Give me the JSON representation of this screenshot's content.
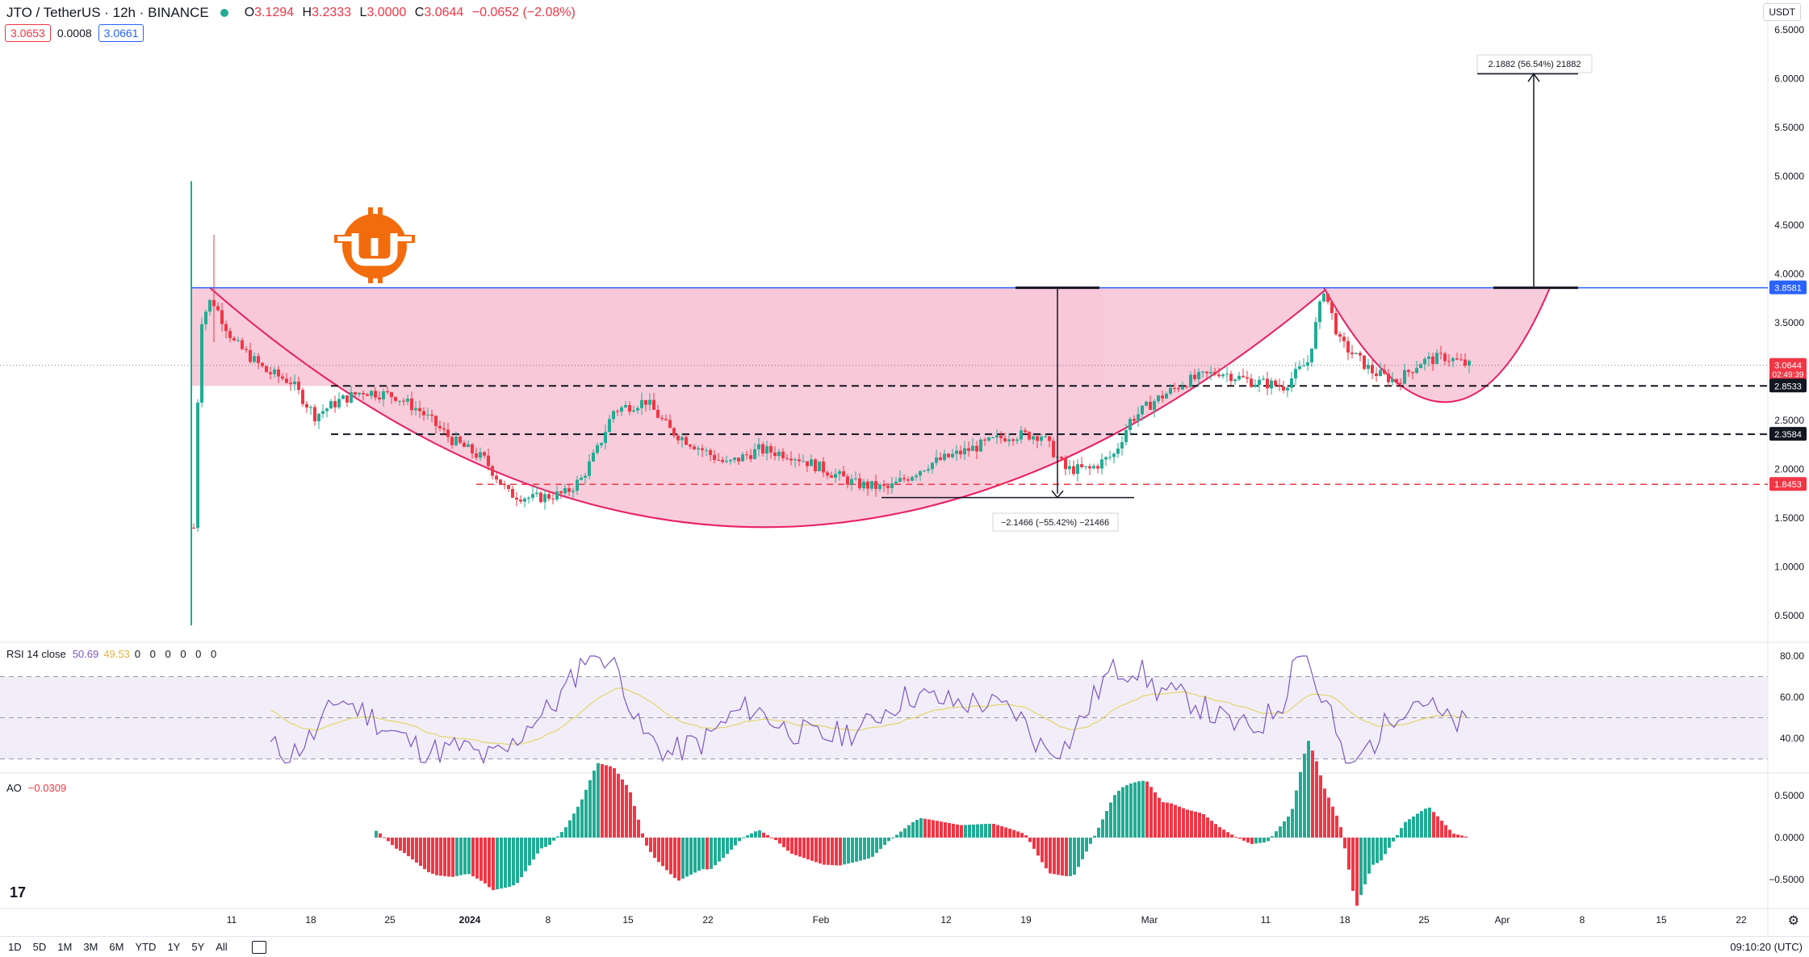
{
  "header": {
    "symbol": "JTO / TetherUS · 12h · BINANCE",
    "ohlc": [
      {
        "k": "O",
        "v": "3.1294"
      },
      {
        "k": "H",
        "v": "3.2333"
      },
      {
        "k": "L",
        "v": "3.0000"
      },
      {
        "k": "C",
        "v": "3.0644"
      },
      {
        "k": "",
        "v": "−0.0652 (−2.08%)"
      }
    ],
    "bid": "3.0653",
    "spread": "0.0008",
    "ask": "3.0661",
    "currency_button": "USDT"
  },
  "price_axis": {
    "ticks": [
      "6.5000",
      "6.0000",
      "5.5000",
      "5.0000",
      "4.5000",
      "4.0000",
      "3.5000",
      "3.0000",
      "2.5000",
      "2.0000",
      "1.5000",
      "1.0000",
      "0.5000"
    ],
    "badges": [
      {
        "label": "3.8581",
        "value": 3.8581,
        "color": "#2962ff"
      },
      {
        "label": "3.0644",
        "value": 3.0644,
        "color": "#f23645",
        "sub": "02:49:39"
      },
      {
        "label": "2.8533",
        "value": 2.8533,
        "color": "#131722"
      },
      {
        "label": "2.3584",
        "value": 2.3584,
        "color": "#131722"
      },
      {
        "label": "1.8453",
        "value": 1.8453,
        "color": "#f23645"
      }
    ]
  },
  "annotations": {
    "drop_label": "−2.1466 (−55.42%) −21466",
    "target_label": "2.1882 (56.54%) 21882"
  },
  "rsi": {
    "label": "RSI 14 close",
    "value1": "50.69",
    "value2": "49.53",
    "extra": "0 0 0 0 0 0",
    "ticks": [
      "80.00",
      "60.00",
      "40.00"
    ]
  },
  "ao": {
    "label": "AO",
    "value": "−0.0309",
    "ticks": [
      "0.5000",
      "0.0000",
      "−0.5000"
    ]
  },
  "time_axis": [
    "11",
    "18",
    "25",
    "2024",
    "8",
    "15",
    "22",
    "Feb",
    "12",
    "19",
    "Mar",
    "11",
    "18",
    "25",
    "Apr",
    "8",
    "15",
    "22"
  ],
  "bottom_bar": {
    "timeframes": [
      "1D",
      "5D",
      "1M",
      "3M",
      "6M",
      "YTD",
      "1Y",
      "5Y",
      "All"
    ],
    "clock": "09:10:20 (UTC)"
  },
  "colors": {
    "up": "#22ab94",
    "down": "#f23645",
    "cup_fill": "#f7c6d7",
    "cup_line": "#e91e63",
    "resistance": "#2962ff",
    "rsi": "#7e57c2",
    "rsi_ma": "#e3d56a"
  },
  "icons": {
    "tradingview_logo": "tradingview-logo-icon",
    "brand_logo": "coin-w-logo-icon",
    "calendar": "calendar-icon",
    "settings": "gear-icon"
  }
}
